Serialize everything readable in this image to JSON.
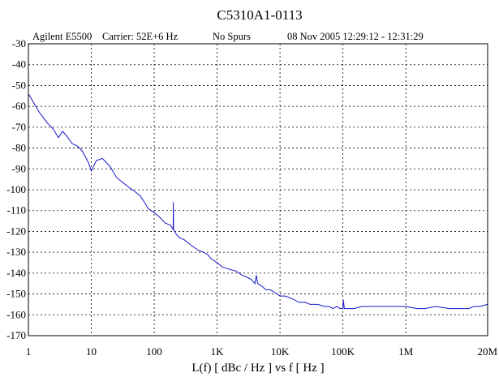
{
  "chart_data": {
    "type": "line",
    "title": "C5310A1-0113",
    "header": {
      "instrument": "Agilent E5500",
      "carrier": "Carrier: 52E+6 Hz",
      "spurs": "No Spurs",
      "timestamp": "08 Nov 2005  12:29:12 - 12:31:29"
    },
    "xlabel": "L(f)  [ dBc / Hz ]  vs  f  [ Hz ]",
    "ylabel": "",
    "x_scale": "log",
    "xlim": [
      1,
      20000000
    ],
    "ylim": [
      -170,
      -30
    ],
    "grid": true,
    "x_ticks": [
      {
        "value": 1,
        "label": "1"
      },
      {
        "value": 10,
        "label": "10"
      },
      {
        "value": 100,
        "label": "100"
      },
      {
        "value": 1000,
        "label": "1K"
      },
      {
        "value": 10000,
        "label": "10K"
      },
      {
        "value": 100000,
        "label": "100K"
      },
      {
        "value": 1000000,
        "label": "1M"
      },
      {
        "value": 20000000,
        "label": "20M"
      }
    ],
    "y_ticks": [
      {
        "value": -30,
        "label": "-30"
      },
      {
        "value": -40,
        "label": "-40"
      },
      {
        "value": -50,
        "label": "-50"
      },
      {
        "value": -60,
        "label": "-60"
      },
      {
        "value": -70,
        "label": "-70"
      },
      {
        "value": -80,
        "label": "-80"
      },
      {
        "value": -90,
        "label": "-90"
      },
      {
        "value": -100,
        "label": "-100"
      },
      {
        "value": -110,
        "label": "-110"
      },
      {
        "value": -120,
        "label": "-120"
      },
      {
        "value": -130,
        "label": "-130"
      },
      {
        "value": -140,
        "label": "-140"
      },
      {
        "value": -150,
        "label": "-150"
      },
      {
        "value": -160,
        "label": "-160"
      },
      {
        "value": -170,
        "label": "-170"
      }
    ],
    "series": [
      {
        "color": "#1414c8",
        "x": [
          1,
          1.2,
          1.5,
          2,
          2.5,
          3,
          3.5,
          4,
          5,
          6,
          7,
          8,
          9,
          10,
          12,
          15,
          20,
          25,
          30,
          40,
          50,
          60,
          70,
          80,
          100,
          120,
          150,
          180,
          200,
          201,
          203,
          220,
          250,
          300,
          400,
          500,
          600,
          700,
          800,
          1000,
          1200,
          1500,
          2000,
          2500,
          3000,
          3500,
          4000,
          4200,
          4400,
          5000,
          6000,
          7000,
          8000,
          10000,
          12000,
          15000,
          20000,
          25000,
          30000,
          40000,
          50000,
          60000,
          70000,
          80000,
          90000,
          100000,
          102000,
          105000,
          110000,
          120000,
          150000,
          200000,
          300000,
          500000,
          700000,
          1000000,
          1500000,
          2000000,
          3000000,
          5000000,
          7000000,
          10000000,
          12000000,
          15000000,
          20000000
        ],
        "y": [
          -54,
          -58,
          -63,
          -68,
          -71,
          -75,
          -72,
          -74,
          -78,
          -79,
          -81,
          -84,
          -87,
          -91,
          -86,
          -85,
          -89,
          -94,
          -96,
          -99,
          -101,
          -103,
          -106,
          -109,
          -111,
          -113,
          -116,
          -117,
          -119,
          -106,
          -119,
          -121,
          -123,
          -124,
          -127,
          -129,
          -130,
          -131,
          -133,
          -135,
          -137,
          -138,
          -139,
          -141,
          -142,
          -143,
          -145,
          -141,
          -145,
          -146,
          -148,
          -148,
          -149,
          -151,
          -151,
          -152,
          -154,
          -154,
          -155,
          -155,
          -156,
          -156,
          -157,
          -156,
          -157,
          -157,
          -153,
          -157,
          -157,
          -157,
          -157,
          -156,
          -156,
          -156,
          -156,
          -156,
          -157,
          -157,
          -156,
          -157,
          -157,
          -157,
          -156,
          -156,
          -155
        ]
      }
    ]
  }
}
